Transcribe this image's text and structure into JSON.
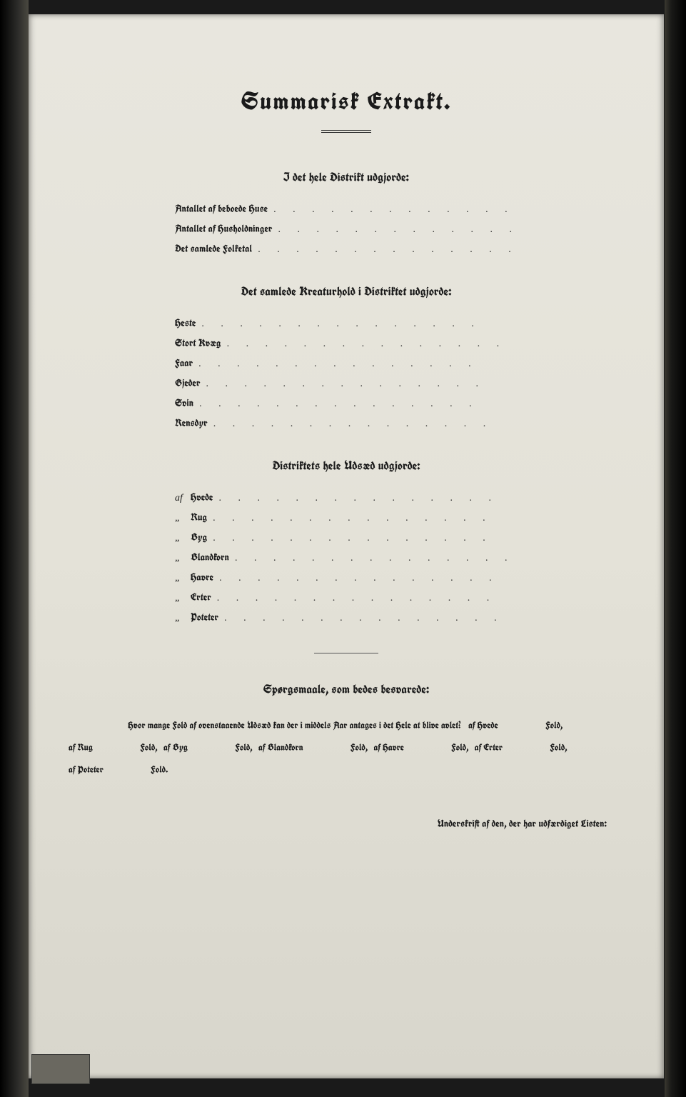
{
  "title": "Summarisk Extrakt.",
  "sections": [
    {
      "heading": "I det hele Distrikt udgjorde:",
      "items": [
        {
          "label": "Antallet af beboede Huse"
        },
        {
          "label": "Antallet af Husholdninger"
        },
        {
          "label": "Det samlede Folketal"
        }
      ]
    },
    {
      "heading": "Det samlede Kreaturhold i Distriktet udgjorde:",
      "items": [
        {
          "label": "Heste"
        },
        {
          "label": "Stort Kvæg"
        },
        {
          "label": "Faar"
        },
        {
          "label": "Gjeder"
        },
        {
          "label": "Svin"
        },
        {
          "label": "Rensdyr"
        }
      ]
    },
    {
      "heading": "Distriktets hele Udsæd udgjorde:",
      "items": [
        {
          "prefix": "af",
          "label": "Hvede"
        },
        {
          "prefix": "„",
          "label": "Rug"
        },
        {
          "prefix": "„",
          "label": "Byg"
        },
        {
          "prefix": "„",
          "label": "Blandkorn"
        },
        {
          "prefix": "„",
          "label": "Havre"
        },
        {
          "prefix": "„",
          "label": "Erter"
        },
        {
          "prefix": "„",
          "label": "Poteter"
        }
      ]
    }
  ],
  "question": {
    "heading": "Spørgsmaale, som bedes besvarede:",
    "intro": "Hvor mange Fold af ovenstaaende Udsæd kan der i middels Aar antages i det Hele at blive avlet?",
    "crops": [
      {
        "af": "af Hvede",
        "fold": "Fold,"
      },
      {
        "af": "af Rug",
        "fold": "Fold,"
      },
      {
        "af": "af Byg",
        "fold": "Fold,"
      },
      {
        "af": "af Blandkorn",
        "fold": "Fold,"
      },
      {
        "af": "af Havre",
        "fold": "Fold,"
      },
      {
        "af": "af Erter",
        "fold": "Fold,"
      },
      {
        "af": "af Poteter",
        "fold": "Fold."
      }
    ]
  },
  "signature": "Underskrift af den, der har udfærdiget Listen:",
  "dots": ". . . . . . . . . . . . . . ."
}
